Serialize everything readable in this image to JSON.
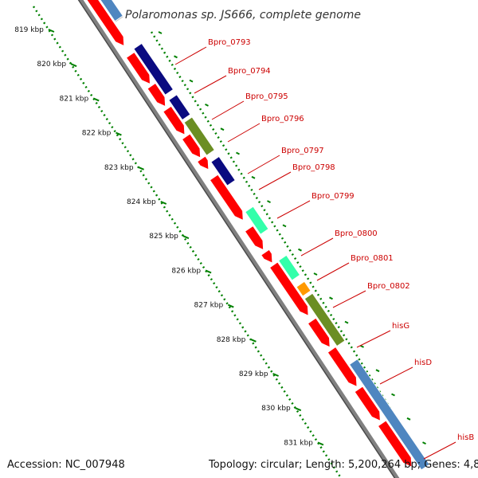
{
  "title": "Polaromonas sp. JS666, complete genome",
  "footer": {
    "accession": "Accession: NC_007948",
    "summary": "Topology: circular; Length: 5,200,264 bp; Genes: 4,873"
  },
  "ruler": {
    "unit": "kbp",
    "ticks": [
      "819 kbp",
      "820 kbp",
      "821 kbp",
      "822 kbp",
      "823 kbp",
      "824 kbp",
      "825 kbp",
      "826 kbp",
      "827 kbp",
      "828 kbp",
      "829 kbp",
      "830 kbp",
      "831 kbp"
    ]
  },
  "genes": [
    {
      "name": "Bpro_0793"
    },
    {
      "name": "Bpro_0794"
    },
    {
      "name": "Bpro_0795"
    },
    {
      "name": "Bpro_0796"
    },
    {
      "name": "Bpro_0797"
    },
    {
      "name": "Bpro_0798"
    },
    {
      "name": "Bpro_0799"
    },
    {
      "name": "Bpro_0800"
    },
    {
      "name": "Bpro_0801"
    },
    {
      "name": "Bpro_0802"
    },
    {
      "name": "hisG"
    },
    {
      "name": "hisD"
    },
    {
      "name": "hisB"
    }
  ],
  "colors": {
    "cds": "#ff0000",
    "navy": "#0a0a80",
    "olive": "#6b8e23",
    "aqua": "#33ffaa",
    "orange": "#ff9900",
    "steelblue": "#4f86c0",
    "backbone": "#808080",
    "tick": "#008000",
    "label": "#cc0000"
  }
}
